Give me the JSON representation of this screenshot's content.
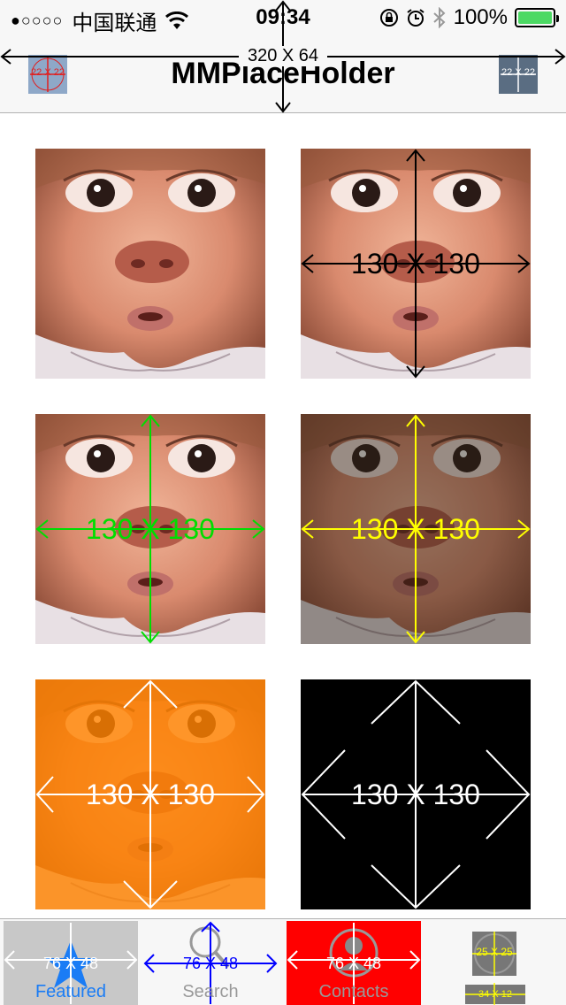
{
  "status_bar": {
    "signal": "●○○○○",
    "carrier": "中国联通",
    "time": "09:34",
    "battery": "100%",
    "battery_color": "#4cd964"
  },
  "nav_bar": {
    "title": "MMPlaceHolder",
    "bar_size": "320 X 64",
    "left_button_size": "22 X 22",
    "right_button_size": "22 X 22"
  },
  "grid": [
    {
      "label": "",
      "tint": "none"
    },
    {
      "label": "130 X 130",
      "tint": "none",
      "line_color": "#000000"
    },
    {
      "label": "130 X 130",
      "tint": "none",
      "line_color": "#00dd00"
    },
    {
      "label": "130 X 130",
      "tint": "dim",
      "line_color": "#ffff00"
    },
    {
      "label": "130 X 130",
      "tint": "orange",
      "line_color": "#ffffff"
    },
    {
      "label": "130 X 130",
      "tint": "black",
      "line_color": "#ffffff"
    }
  ],
  "tab_bar": {
    "tabs": [
      {
        "label": "Featured",
        "icon": "star-icon",
        "size": "76 X 48",
        "bg": "#c8c8c8",
        "text_color": "#1a7cf5",
        "selected": true
      },
      {
        "label": "Search",
        "icon": "search-icon",
        "size": "76 X 48",
        "bg": "#f7f7f7",
        "text_color": "#999999",
        "line_color": "#0000ff"
      },
      {
        "label": "Contacts",
        "icon": "contacts-icon",
        "size": "76 X 48",
        "bg": "#ff0000",
        "text_color": "#999999"
      },
      {
        "label": "",
        "icon": "more-icon",
        "size": "25 X 25",
        "size2": "34 X 12",
        "bg": "#f7f7f7",
        "line_color": "#ffff00"
      }
    ]
  }
}
